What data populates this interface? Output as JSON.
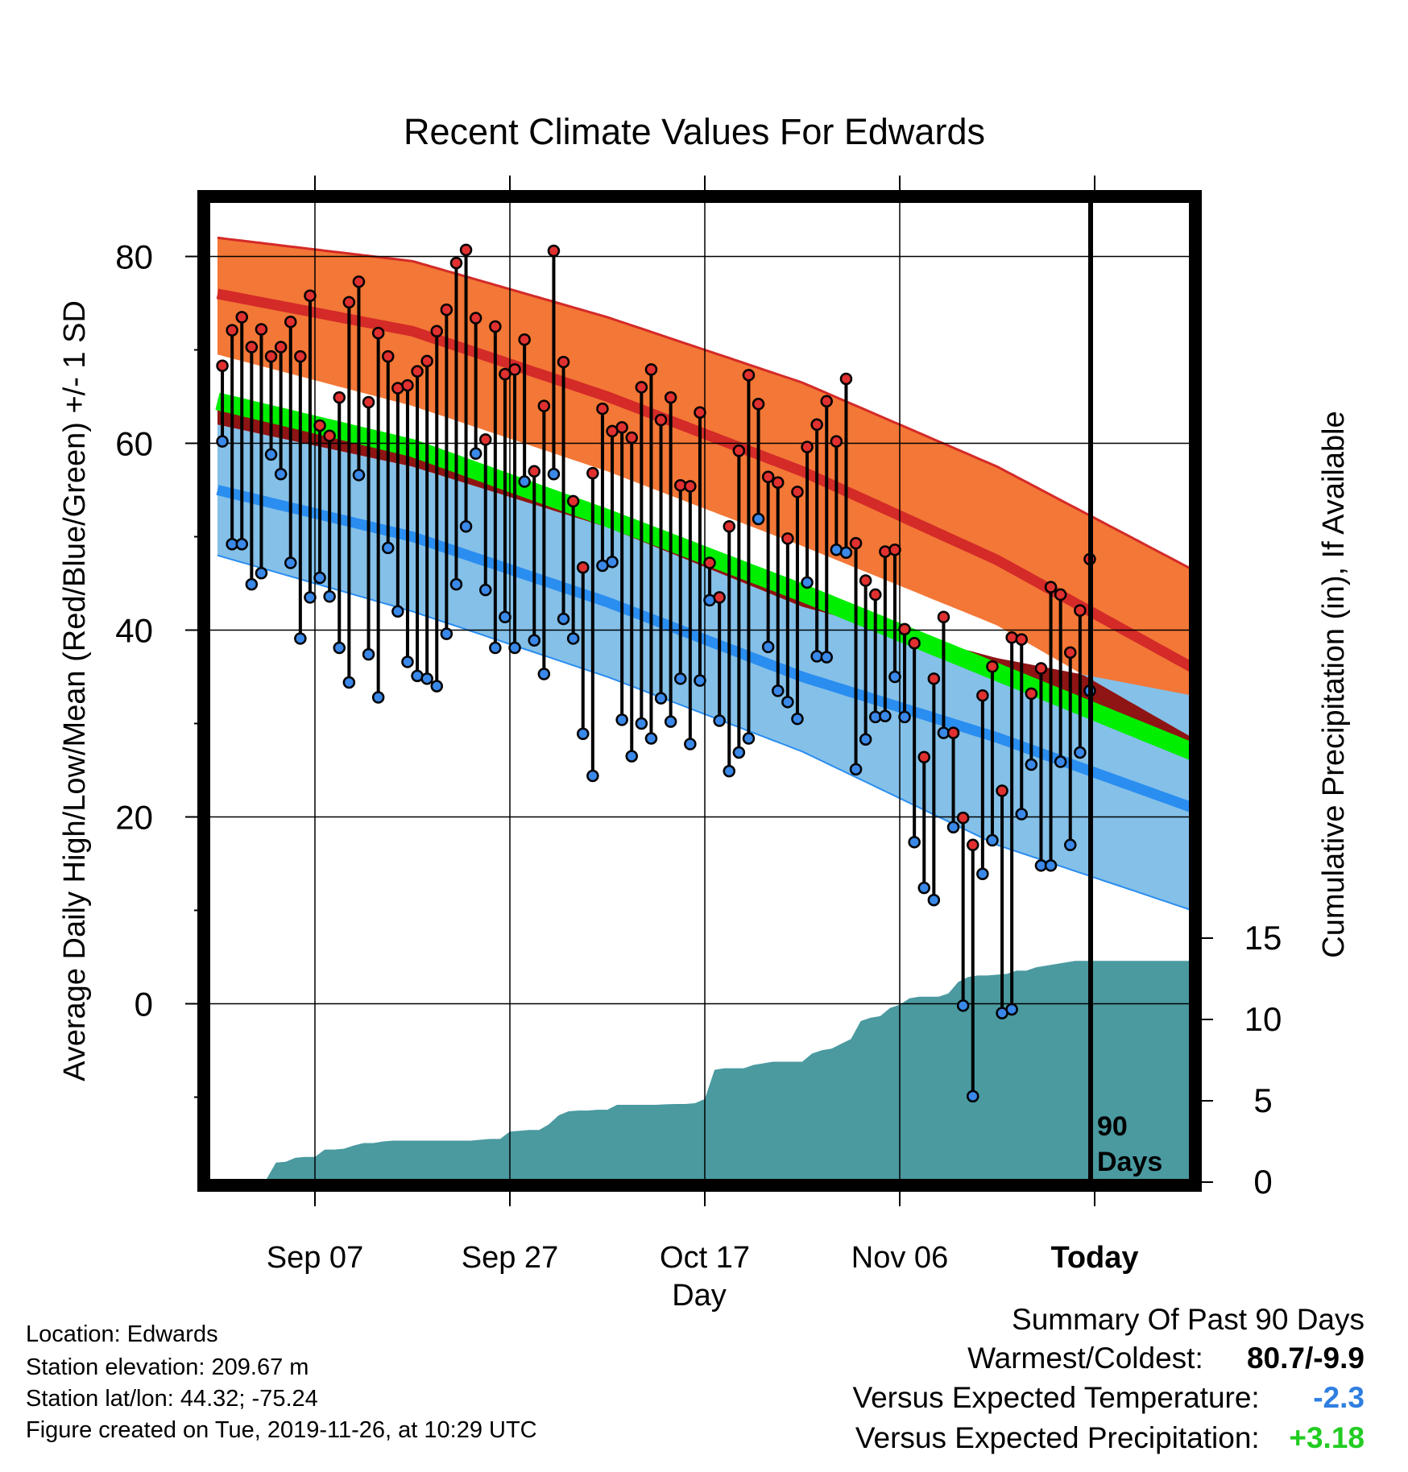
{
  "chart_data": {
    "type": "line",
    "title": "Recent Climate Values For Edwards",
    "xlabel": "Day",
    "ylabel": "Average Daily High/Low/Mean (Red/Blue/Green) +/- 1 SD",
    "y2label": "Cumulative Precipitation (in), If Available",
    "x_start": "Aug 29",
    "x_range_days": [
      0,
      101
    ],
    "today_day": 90,
    "ylim": [
      -19,
      86
    ],
    "y_ticks": [
      0,
      20,
      40,
      60,
      80
    ],
    "y2lim": [
      0,
      15
    ],
    "y2_ticks": [
      0,
      5,
      10,
      15
    ],
    "x_ticks": [
      {
        "day": 10,
        "label": "Sep 07"
      },
      {
        "day": 30,
        "label": "Sep 27"
      },
      {
        "day": 50,
        "label": "Oct 17"
      },
      {
        "day": 70,
        "label": "Nov 06"
      },
      {
        "day": 90,
        "label": "Today"
      }
    ],
    "today_marker_label": "90 Days",
    "grid": true,
    "normals": {
      "day": [
        0,
        20,
        40,
        60,
        80,
        100
      ],
      "high_upper": [
        82,
        79.5,
        73.5,
        66.5,
        57.5,
        46.5
      ],
      "high_mean": [
        76,
        72,
        65,
        57,
        47.5,
        36
      ],
      "high_lower": [
        69.5,
        64,
        57,
        49,
        40.5,
        28.5
      ],
      "mean": [
        64.5,
        59.5,
        52,
        44,
        35.5,
        27
      ],
      "low_upper": [
        62,
        57.5,
        51,
        42.5,
        37,
        33
      ],
      "low_mean": [
        55,
        50,
        43,
        35,
        28.5,
        21
      ],
      "low_lower": [
        48,
        42,
        35,
        27,
        17,
        10
      ]
    },
    "series": [
      {
        "name": "High",
        "values": [
          68.3,
          72.1,
          73.5,
          70.3,
          72.2,
          69.3,
          70.3,
          73.0,
          69.3,
          75.8,
          61.9,
          60.8,
          64.9,
          75.1,
          77.3,
          64.4,
          71.8,
          69.3,
          65.9,
          66.2,
          67.7,
          68.8,
          72.0,
          74.3,
          79.3,
          80.7,
          73.4,
          60.4,
          72.5,
          67.4,
          67.9,
          71.1,
          57.0,
          64.0,
          80.6,
          68.7,
          53.8,
          46.7,
          56.8,
          63.7,
          61.3,
          61.7,
          60.6,
          66.0,
          67.9,
          62.5,
          64.9,
          55.5,
          55.4,
          63.3,
          47.2,
          43.5,
          51.1,
          59.2,
          67.3,
          64.2,
          56.4,
          55.8,
          49.8,
          54.8,
          59.6,
          62.0,
          64.5,
          60.2,
          66.9,
          49.3,
          45.3,
          43.8,
          48.4,
          48.6,
          40.1,
          38.6,
          26.4,
          34.8,
          41.4,
          29.0,
          19.9,
          17.0,
          33.0,
          36.1,
          22.8,
          39.2,
          39.0,
          33.2,
          35.9,
          44.6,
          43.8,
          37.6,
          42.1,
          47.6
        ]
      },
      {
        "name": "Low",
        "values": [
          60.2,
          49.2,
          49.2,
          44.9,
          46.1,
          58.8,
          56.7,
          47.2,
          39.1,
          43.5,
          45.6,
          43.6,
          38.1,
          34.4,
          56.6,
          37.4,
          32.8,
          48.8,
          42.0,
          36.6,
          35.1,
          34.8,
          34.0,
          39.6,
          44.9,
          51.1,
          58.9,
          44.3,
          38.1,
          41.4,
          38.1,
          55.9,
          38.9,
          35.3,
          56.7,
          41.2,
          39.1,
          28.9,
          24.4,
          46.9,
          47.3,
          30.4,
          26.5,
          30.0,
          28.4,
          32.7,
          30.2,
          34.8,
          27.8,
          34.6,
          43.2,
          30.3,
          24.9,
          26.9,
          28.4,
          51.9,
          38.2,
          33.5,
          32.3,
          30.5,
          45.1,
          37.2,
          37.1,
          48.6,
          48.3,
          25.1,
          28.3,
          30.7,
          30.8,
          35.0,
          30.7,
          17.3,
          12.4,
          11.1,
          29.0,
          18.9,
          -0.2,
          -9.9,
          13.9,
          17.5,
          -1.0,
          -0.6,
          20.3,
          25.6,
          14.8,
          14.8,
          25.9,
          17.0,
          26.9,
          33.5
        ]
      },
      {
        "name": "Cumulative Precipitation",
        "day": [
          0,
          4,
          5,
          6,
          7,
          8,
          9,
          10,
          11,
          12,
          13,
          14,
          15,
          16,
          17,
          18,
          19,
          20,
          21,
          22,
          23,
          24,
          25,
          26,
          27,
          28,
          29,
          30,
          31,
          32,
          33,
          34,
          35,
          36,
          37,
          38,
          39,
          40,
          41,
          42,
          43,
          44,
          45,
          46,
          47,
          48,
          49,
          50,
          51,
          52,
          53,
          54,
          55,
          56,
          57,
          58,
          59,
          60,
          61,
          62,
          63,
          64,
          65,
          66,
          67,
          68,
          69,
          70,
          71,
          72,
          73,
          74,
          75,
          76,
          77,
          78,
          79,
          80,
          81,
          82,
          83,
          84,
          85,
          86,
          87,
          88,
          89,
          90,
          91,
          95,
          101
        ],
        "values": [
          0.15,
          0.25,
          0.35,
          1.4,
          1.45,
          1.7,
          1.75,
          1.75,
          2.2,
          2.2,
          2.25,
          2.45,
          2.6,
          2.6,
          2.7,
          2.75,
          2.75,
          2.75,
          2.75,
          2.75,
          2.75,
          2.75,
          2.75,
          2.75,
          2.8,
          2.85,
          2.85,
          3.3,
          3.35,
          3.4,
          3.4,
          3.75,
          4.3,
          4.55,
          4.6,
          4.6,
          4.65,
          4.65,
          4.95,
          4.95,
          4.95,
          4.95,
          4.95,
          4.98,
          5.0,
          5.0,
          5.05,
          5.3,
          7.1,
          7.2,
          7.2,
          7.2,
          7.4,
          7.5,
          7.6,
          7.6,
          7.6,
          7.6,
          8.1,
          8.3,
          8.4,
          8.7,
          9.0,
          10.1,
          10.3,
          10.4,
          10.9,
          11.1,
          11.5,
          11.6,
          11.6,
          11.6,
          11.8,
          12.5,
          12.8,
          12.9,
          12.9,
          12.95,
          13.0,
          13.2,
          13.2,
          13.4,
          13.5,
          13.6,
          13.7,
          13.8,
          13.8,
          13.8,
          13.8,
          13.8,
          13.8
        ]
      }
    ]
  },
  "footer": {
    "location": "Location: Edwards",
    "elevation": "Station elevation: 209.67 m",
    "latlon": "Station lat/lon: 44.32; -75.24",
    "created": "Figure created on Tue, 2019-11-26, at 10:29 UTC"
  },
  "summary": {
    "title": "Summary Of Past 90 Days",
    "warmest_label": "Warmest/Coldest:",
    "warmest_value": "80.7/-9.9",
    "temp_label": "Versus Expected Temperature:",
    "temp_value": "-2.3",
    "precip_label": "Versus Expected Precipitation:",
    "precip_value": "+3.18",
    "colors": {
      "temp": "#2f7fe0",
      "precip": "#22cc22"
    }
  },
  "colors": {
    "high_band": "#f37736",
    "high_line": "#d42a28",
    "mean_band": "#00ee00",
    "low_band": "#84c0e8",
    "low_line": "#2a8df0",
    "overlap": "#8f1414",
    "precip": "#4a9aa0",
    "high_dot": "#e03030",
    "low_dot": "#3a88e8"
  }
}
